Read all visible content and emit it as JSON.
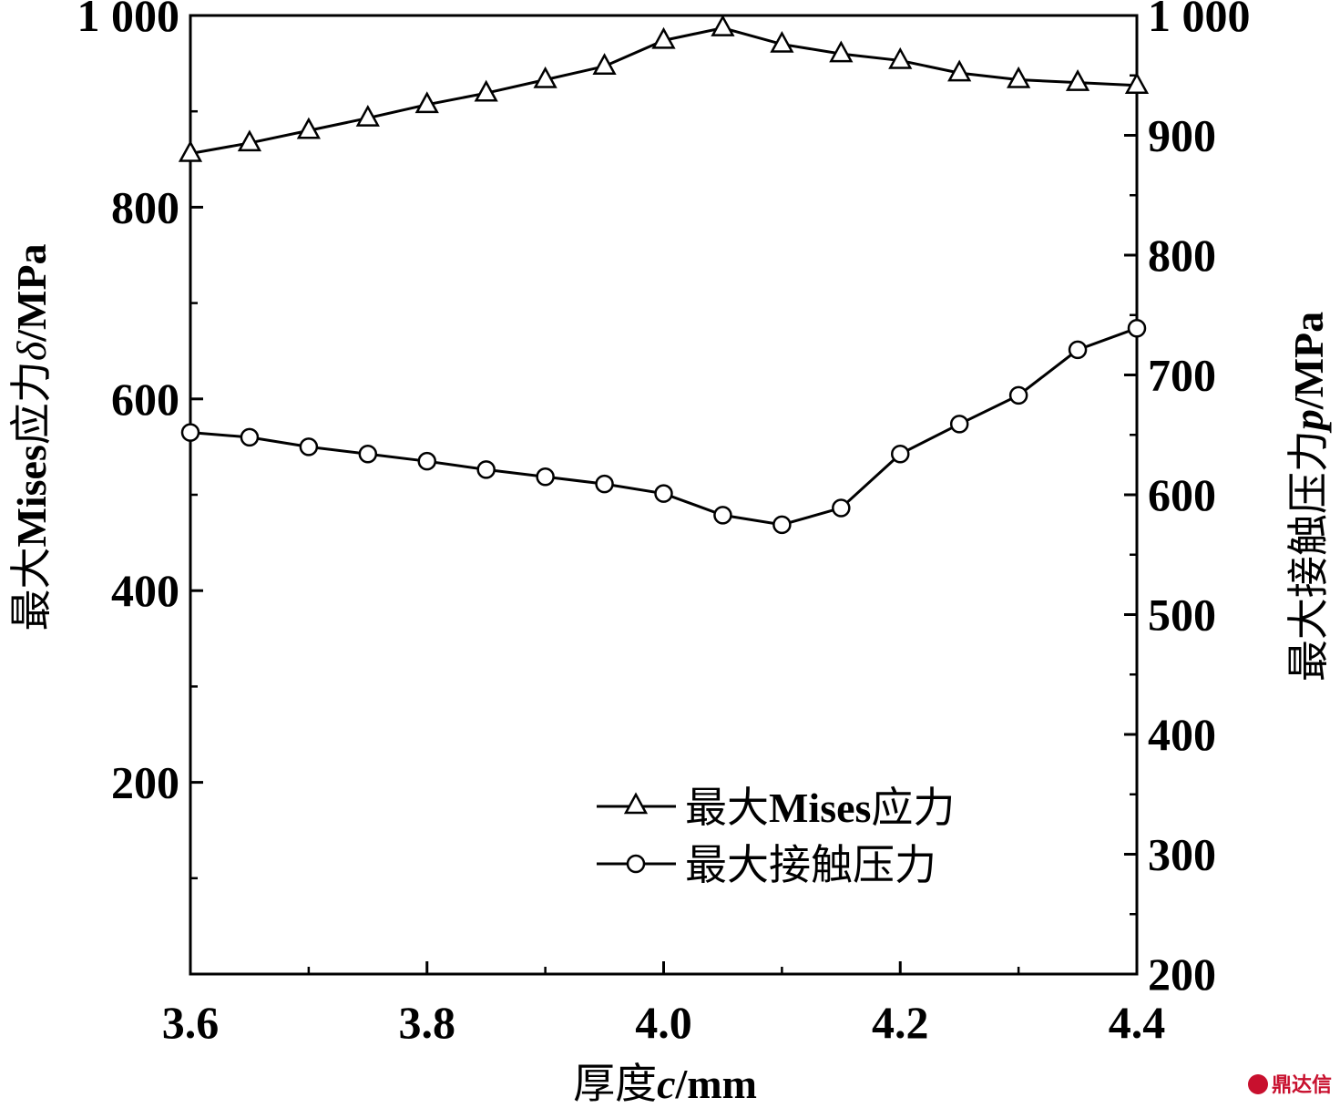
{
  "chart_data": {
    "type": "line",
    "xlabel": "厚度c/mm",
    "xlabel_parts": {
      "prefix": "厚度",
      "italic": "c",
      "suffix": "/mm"
    },
    "ylabel_left": "最大Mises应力δ/MPa",
    "ylabel_left_parts": {
      "prefix": "最大",
      "bold": "Mises",
      "mid": "应力",
      "italic": "δ",
      "suffix": "/MPa"
    },
    "ylabel_right": "最大接触压力p/MPa",
    "ylabel_right_parts": {
      "prefix": "最大接触压力",
      "italic": "p",
      "suffix": "/MPa"
    },
    "xlim": [
      3.6,
      4.4
    ],
    "ylim_left": [
      0,
      1000
    ],
    "ylim_right": [
      200,
      1000
    ],
    "x_ticks": [
      "3.6",
      "3.8",
      "4.0",
      "4.2",
      "4.4"
    ],
    "y_ticks_left": [
      "200",
      "400",
      "600",
      "800",
      "1 000"
    ],
    "y_ticks_right": [
      "200",
      "300",
      "400",
      "500",
      "600",
      "700",
      "800",
      "900",
      "1 000"
    ],
    "x": [
      3.6,
      3.65,
      3.7,
      3.75,
      3.8,
      3.85,
      3.9,
      3.95,
      4.0,
      4.05,
      4.1,
      4.15,
      4.2,
      4.25,
      4.3,
      4.35,
      4.4
    ],
    "series": [
      {
        "name": "最大Mises应力",
        "axis": "left",
        "marker": "triangle",
        "values": [
          856,
          867,
          880,
          893,
          907,
          919,
          933,
          947,
          974,
          987,
          970,
          960,
          953,
          940,
          933,
          930,
          927
        ]
      },
      {
        "name": "最大接触压力",
        "axis": "right",
        "marker": "circle",
        "values": [
          652,
          648,
          640,
          634,
          628,
          621,
          615,
          609,
          601,
          583,
          575,
          589,
          634,
          659,
          683,
          721,
          739
        ]
      }
    ],
    "legend": [
      {
        "label_prefix": "最大",
        "label_bold": "Mises",
        "label_suffix": "应力",
        "marker": "triangle"
      },
      {
        "label_prefix": "最大接触压力",
        "label_bold": "",
        "label_suffix": "",
        "marker": "circle"
      }
    ],
    "legend_position": "lower-right",
    "grid": false
  },
  "watermark": {
    "text": "鼎达信",
    "color": "#c8102e"
  }
}
